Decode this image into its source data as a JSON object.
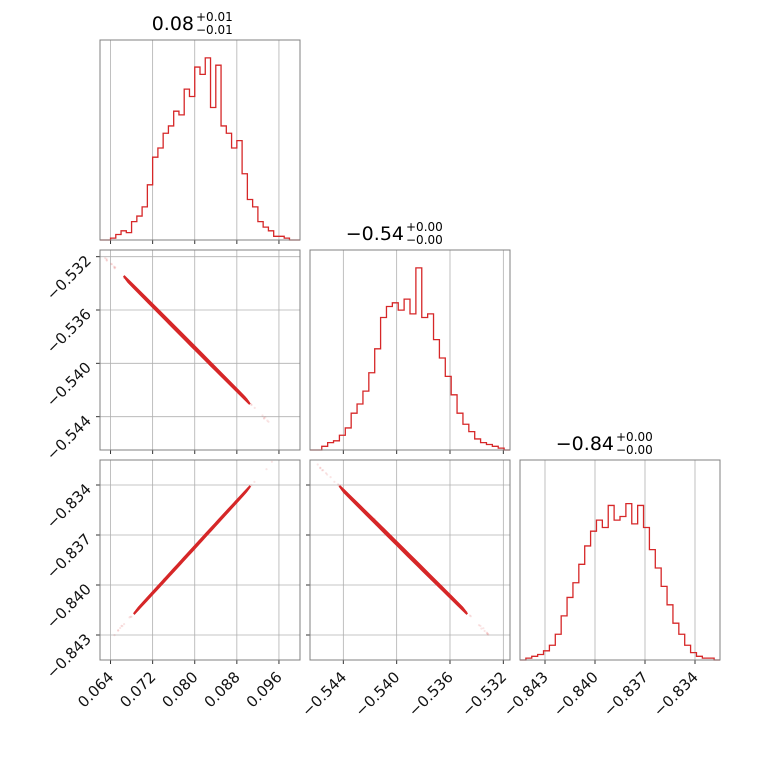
{
  "chart_data": {
    "type": "corner",
    "color": "#d62728",
    "parameters": [
      {
        "title": {
          "value": "0.08",
          "plus": "+0.01",
          "minus": "−0.01"
        },
        "range": [
          0.062,
          0.1
        ],
        "ticks": [
          0.064,
          0.072,
          0.08,
          0.088,
          0.096
        ],
        "tick_labels": [
          "0.064",
          "0.072",
          "0.080",
          "0.088",
          "0.096"
        ],
        "histogram": [
          0.0,
          0.0,
          0.01,
          0.03,
          0.05,
          0.04,
          0.1,
          0.13,
          0.18,
          0.3,
          0.45,
          0.5,
          0.58,
          0.62,
          0.7,
          0.68,
          0.82,
          0.78,
          0.94,
          0.9,
          0.99,
          0.72,
          0.95,
          0.62,
          0.58,
          0.5,
          0.54,
          0.36,
          0.22,
          0.18,
          0.1,
          0.07,
          0.05,
          0.02,
          0.02,
          0.01,
          0.0,
          0.0
        ]
      },
      {
        "title": {
          "value": "−0.54",
          "plus": "+0.00",
          "minus": "−0.00"
        },
        "range": [
          -0.5465,
          -0.5315
        ],
        "ticks": [
          -0.544,
          -0.54,
          -0.536,
          -0.532
        ],
        "tick_labels": [
          "−0.544",
          "−0.540",
          "−0.536",
          "−0.532"
        ],
        "y_ticks": [
          -0.532,
          -0.536,
          -0.54,
          -0.544
        ],
        "y_tick_labels": [
          "−0.532",
          "−0.536",
          "−0.540",
          "−0.544"
        ],
        "histogram": [
          0.0,
          0.0,
          0.02,
          0.04,
          0.05,
          0.08,
          0.12,
          0.2,
          0.25,
          0.32,
          0.42,
          0.55,
          0.72,
          0.78,
          0.8,
          0.76,
          0.82,
          0.74,
          0.99,
          0.72,
          0.74,
          0.6,
          0.5,
          0.4,
          0.3,
          0.2,
          0.14,
          0.1,
          0.06,
          0.04,
          0.03,
          0.02,
          0.01,
          0.0
        ]
      },
      {
        "title": {
          "value": "−0.84",
          "plus": "+0.00",
          "minus": "−0.00"
        },
        "range": [
          -0.8445,
          -0.8325
        ],
        "ticks": [
          -0.843,
          -0.84,
          -0.837,
          -0.834
        ],
        "tick_labels": [
          "−0.843",
          "−0.840",
          "−0.837",
          "−0.834"
        ],
        "y_ticks": [
          -0.834,
          -0.837,
          -0.84,
          -0.843
        ],
        "y_tick_labels": [
          "−0.834",
          "−0.837",
          "−0.840",
          "−0.843"
        ],
        "histogram": [
          0.0,
          0.01,
          0.02,
          0.03,
          0.05,
          0.08,
          0.14,
          0.24,
          0.34,
          0.42,
          0.52,
          0.62,
          0.7,
          0.76,
          0.72,
          0.84,
          0.76,
          0.78,
          0.85,
          0.74,
          0.84,
          0.72,
          0.6,
          0.5,
          0.4,
          0.3,
          0.2,
          0.14,
          0.08,
          0.04,
          0.02,
          0.01,
          0.01,
          0.0
        ]
      }
    ],
    "pairs": [
      {
        "x_param": 0,
        "y_param": 1,
        "correlation": "negative",
        "x_span": [
          0.066,
          0.091
        ]
      },
      {
        "x_param": 0,
        "y_param": 2,
        "correlation": "positive",
        "x_span": [
          0.068,
          0.091
        ]
      },
      {
        "x_param": 1,
        "y_param": 2,
        "correlation": "negative",
        "x_span": [
          -0.5445,
          -0.5345
        ]
      }
    ],
    "grid": true
  }
}
